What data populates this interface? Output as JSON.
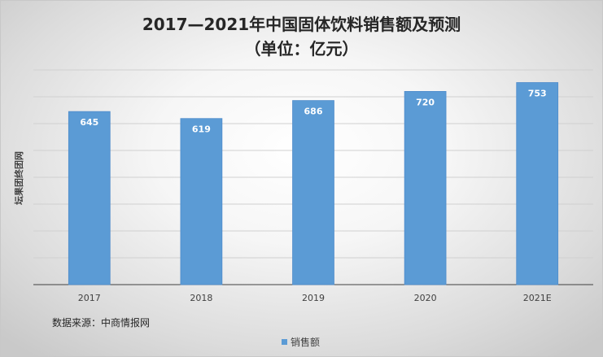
{
  "chart_data": {
    "type": "bar",
    "title_line1": "2017—2021年中国固体饮料销售额及预测",
    "title_line2": "（单位：亿元）",
    "xlabel": "",
    "ylabel": "坛果团终团网",
    "categories": [
      "2017",
      "2018",
      "2019",
      "2020",
      "2021E"
    ],
    "series": [
      {
        "name": "销售额",
        "values": [
          645,
          619,
          686,
          720,
          753
        ],
        "color": "#5b9bd5"
      }
    ],
    "ylim": [
      0,
      800
    ],
    "grid": true,
    "y_tick_labels_shown": false,
    "data_labels": true,
    "legend": "bottom"
  },
  "source_note": "数据来源：中商情报网"
}
